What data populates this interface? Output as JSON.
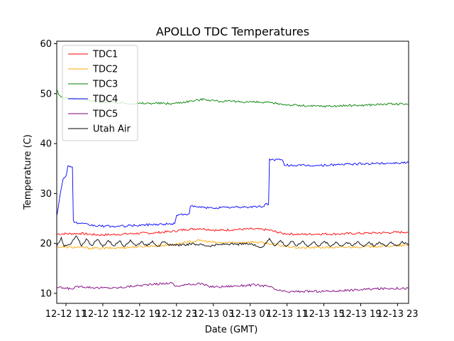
{
  "chart_data": {
    "type": "line",
    "title": "APOLLO TDC Temperatures",
    "xlabel": "Date (GMT)",
    "ylabel": "Temperature (C)",
    "xlim": [
      9.5,
      47.7
    ],
    "ylim": [
      8,
      60.5
    ],
    "x_ticks": [
      {
        "value": 10.5,
        "label": "12-12 11"
      },
      {
        "value": 14.5,
        "label": "12-12 15"
      },
      {
        "value": 18.5,
        "label": "12-12 19"
      },
      {
        "value": 22.5,
        "label": "12-12 23"
      },
      {
        "value": 26.5,
        "label": "12-13 03"
      },
      {
        "value": 30.5,
        "label": "12-13 07"
      },
      {
        "value": 34.5,
        "label": "12-13 11"
      },
      {
        "value": 38.5,
        "label": "12-13 15"
      },
      {
        "value": 42.5,
        "label": "12-13 19"
      },
      {
        "value": 46.5,
        "label": "12-13 23"
      }
    ],
    "y_ticks": [
      {
        "value": 10,
        "label": "10"
      },
      {
        "value": 20,
        "label": "20"
      },
      {
        "value": 30,
        "label": "30"
      },
      {
        "value": 40,
        "label": "40"
      },
      {
        "value": 50,
        "label": "50"
      },
      {
        "value": 60,
        "label": "60"
      }
    ],
    "grid": false,
    "legend_position": "upper-left",
    "series": [
      {
        "name": "TDC1",
        "color": "#ff0000",
        "x": [
          9.5,
          12.0,
          14.0,
          16.0,
          18.0,
          20.0,
          22.0,
          23.5,
          25.0,
          27.0,
          29.0,
          31.0,
          32.5,
          34.0,
          36.0,
          38.0,
          40.0,
          42.0,
          44.0,
          46.0,
          47.7
        ],
        "y": [
          21.9,
          22.0,
          21.7,
          21.8,
          22.0,
          22.1,
          22.4,
          22.8,
          23.0,
          22.6,
          22.8,
          22.9,
          22.7,
          22.0,
          21.8,
          21.9,
          21.9,
          22.0,
          22.1,
          22.2,
          22.3
        ]
      },
      {
        "name": "TDC2",
        "color": "#ffa500",
        "x": [
          9.5,
          12.0,
          14.0,
          16.0,
          18.0,
          20.0,
          22.0,
          23.5,
          25.0,
          27.0,
          29.0,
          31.0,
          32.5,
          34.0,
          36.0,
          38.0,
          40.0,
          42.0,
          44.0,
          46.0,
          47.7
        ],
        "y": [
          19.3,
          19.2,
          19.0,
          19.1,
          19.3,
          19.5,
          19.7,
          20.2,
          20.6,
          20.1,
          20.2,
          20.3,
          20.0,
          19.5,
          19.1,
          19.2,
          19.2,
          19.3,
          19.4,
          19.5,
          19.6
        ]
      },
      {
        "name": "TDC3",
        "color": "#008000",
        "x": [
          9.5,
          9.7,
          10.0,
          11.0,
          12.0,
          13.0,
          14.0,
          16.0,
          18.0,
          20.0,
          22.0,
          24.0,
          25.5,
          27.0,
          29.0,
          31.0,
          33.0,
          35.0,
          37.0,
          39.0,
          41.0,
          43.0,
          45.0,
          47.7
        ],
        "y": [
          50.8,
          49.8,
          49.3,
          49.0,
          48.9,
          48.6,
          48.4,
          48.2,
          48.0,
          48.1,
          48.0,
          48.5,
          48.9,
          48.5,
          48.4,
          48.3,
          48.1,
          47.7,
          47.5,
          47.5,
          47.6,
          47.7,
          47.9,
          47.9
        ]
      },
      {
        "name": "TDC4",
        "color": "#0000ff",
        "x": [
          9.5,
          9.8,
          10.2,
          10.5,
          10.7,
          11.0,
          11.2,
          11.3,
          11.4,
          12.0,
          13.0,
          14.0,
          16.0,
          18.0,
          20.0,
          22.0,
          22.3,
          22.5,
          23.9,
          24.0,
          25.5,
          26.0,
          28.0,
          30.0,
          32.0,
          32.2,
          32.5,
          32.6,
          32.8,
          34.0,
          34.2,
          36.0,
          38.0,
          40.0,
          42.0,
          44.0,
          47.7
        ],
        "y": [
          25.5,
          29.0,
          33.0,
          33.5,
          35.5,
          35.4,
          35.3,
          24.6,
          24.2,
          24.0,
          23.7,
          23.5,
          23.4,
          23.6,
          23.8,
          23.9,
          24.0,
          25.6,
          26.0,
          27.4,
          27.2,
          27.1,
          27.2,
          27.3,
          27.4,
          28.0,
          27.8,
          36.9,
          36.8,
          36.7,
          35.7,
          35.6,
          35.6,
          35.8,
          35.9,
          36.0,
          36.2
        ]
      },
      {
        "name": "TDC5",
        "color": "#800080",
        "x": [
          9.5,
          11.0,
          12.0,
          14.0,
          16.0,
          18.0,
          20.0,
          22.0,
          22.4,
          23.5,
          25.0,
          26.0,
          27.0,
          29.0,
          31.0,
          32.5,
          33.5,
          34.5,
          36.0,
          38.0,
          40.0,
          42.0,
          44.0,
          46.0,
          47.7
        ],
        "y": [
          11.2,
          10.9,
          11.4,
          11.1,
          11.1,
          11.5,
          11.8,
          12.1,
          11.4,
          11.7,
          12.0,
          11.4,
          11.3,
          11.5,
          11.7,
          11.4,
          10.6,
          10.3,
          10.4,
          10.4,
          10.5,
          10.7,
          10.9,
          11.0,
          11.0
        ]
      },
      {
        "name": "Utah Air",
        "color": "#000000",
        "x": [
          9.5,
          10.0,
          10.3,
          11.0,
          11.6,
          12.2,
          12.7,
          13.3,
          13.9,
          14.5,
          15.1,
          15.7,
          16.3,
          16.9,
          17.5,
          18.1,
          18.7,
          19.3,
          19.9,
          20.5,
          21.1,
          21.7,
          22.3,
          23.0,
          24.0,
          25.0,
          26.0,
          27.0,
          28.0,
          29.0,
          30.0,
          31.0,
          31.5,
          32.0,
          32.6,
          33.2,
          33.8,
          34.4,
          35.0,
          35.6,
          36.2,
          36.8,
          37.4,
          38.0,
          38.6,
          39.2,
          39.8,
          40.4,
          41.0,
          41.6,
          42.2,
          42.8,
          43.4,
          44.0,
          44.6,
          45.2,
          45.8,
          46.4,
          47.0,
          47.7
        ],
        "y": [
          19.5,
          21.2,
          19.4,
          19.8,
          21.5,
          19.5,
          20.9,
          19.6,
          20.8,
          19.4,
          20.6,
          19.5,
          20.5,
          19.4,
          20.7,
          19.5,
          20.4,
          19.5,
          20.5,
          19.4,
          20.3,
          19.6,
          19.8,
          19.6,
          19.9,
          19.8,
          19.5,
          19.7,
          19.9,
          19.8,
          19.9,
          19.8,
          19.2,
          19.5,
          21.0,
          19.5,
          20.6,
          19.4,
          20.4,
          19.5,
          20.5,
          19.4,
          20.3,
          19.5,
          20.4,
          19.4,
          20.3,
          19.5,
          20.2,
          19.5,
          20.4,
          19.4,
          20.3,
          19.5,
          20.2,
          19.4,
          20.3,
          19.5,
          20.4,
          19.6
        ]
      }
    ]
  }
}
